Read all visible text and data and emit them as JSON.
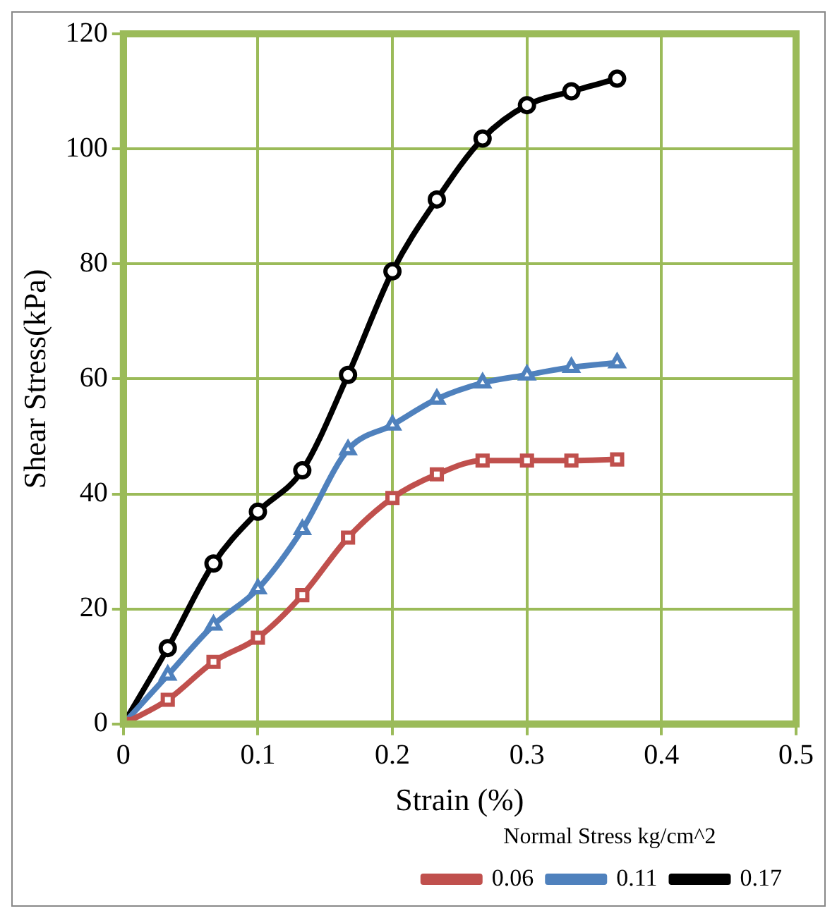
{
  "chart_data": {
    "type": "line",
    "xlabel": "Strain (%)",
    "ylabel": "Shear Stress(kPa)",
    "legend_title": "Normal Stress kg/cm^2",
    "legend": "bottom",
    "grid": true,
    "x": [
      0,
      0.033,
      0.067,
      0.1,
      0.133,
      0.167,
      0.2,
      0.233,
      0.267,
      0.3,
      0.333,
      0.367
    ],
    "xlim": [
      0,
      0.5
    ],
    "xticks": [
      0,
      0.1,
      0.2,
      0.3,
      0.4,
      0.5
    ],
    "ylim": [
      0,
      120
    ],
    "yticks": [
      0,
      20,
      40,
      60,
      80,
      100,
      120
    ],
    "series": [
      {
        "name": "0.06",
        "color": "#c0504d",
        "marker": "square",
        "values": [
          0,
          4.2,
          10.8,
          15,
          22.4,
          32.4,
          39.3,
          43.4,
          45.8,
          45.8,
          45.8,
          46
        ]
      },
      {
        "name": "0.11",
        "color": "#4f81bd",
        "marker": "triangle",
        "values": [
          0,
          8.5,
          17.2,
          23.5,
          33.8,
          47.7,
          52,
          56.5,
          59.3,
          60.7,
          62,
          62.8
        ]
      },
      {
        "name": "0.17",
        "color": "#000000",
        "marker": "circle",
        "values": [
          0,
          13.2,
          27.9,
          36.9,
          44.1,
          60.7,
          78.7,
          91.2,
          101.8,
          107.6,
          110,
          112.2
        ]
      }
    ]
  }
}
